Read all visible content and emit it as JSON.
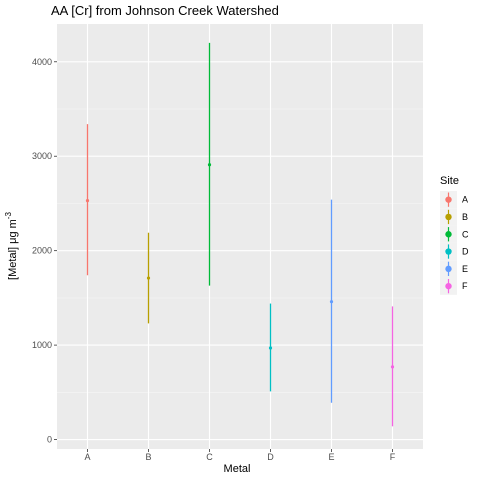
{
  "chart_data": {
    "type": "errorbar",
    "title": "AA [Cr] from Johnson Creek Watershed",
    "xlabel": "Metal",
    "ylabel_base": "[Metal] μg m",
    "ylabel_exp": "-3",
    "categories": [
      "A",
      "B",
      "C",
      "D",
      "E",
      "F"
    ],
    "y_ticks": [
      0,
      1000,
      2000,
      3000,
      4000
    ],
    "y_tick_labels": [
      "0",
      "1000",
      "2000",
      "3000",
      "4000"
    ],
    "ylim": [
      -100,
      4400
    ],
    "grid": true,
    "legend": {
      "title": "Site",
      "placement": "right"
    },
    "series": [
      {
        "name": "A",
        "color": "#F8766D",
        "value": 2530,
        "low": 1740,
        "high": 3340
      },
      {
        "name": "B",
        "color": "#B79F00",
        "value": 1710,
        "low": 1230,
        "high": 2190
      },
      {
        "name": "C",
        "color": "#00BA38",
        "value": 2910,
        "low": 1630,
        "high": 4200
      },
      {
        "name": "D",
        "color": "#00BFC4",
        "value": 970,
        "low": 510,
        "high": 1440
      },
      {
        "name": "E",
        "color": "#619CFF",
        "value": 1460,
        "low": 390,
        "high": 2540
      },
      {
        "name": "F",
        "color": "#F564E3",
        "value": 770,
        "low": 140,
        "high": 1410
      }
    ]
  }
}
